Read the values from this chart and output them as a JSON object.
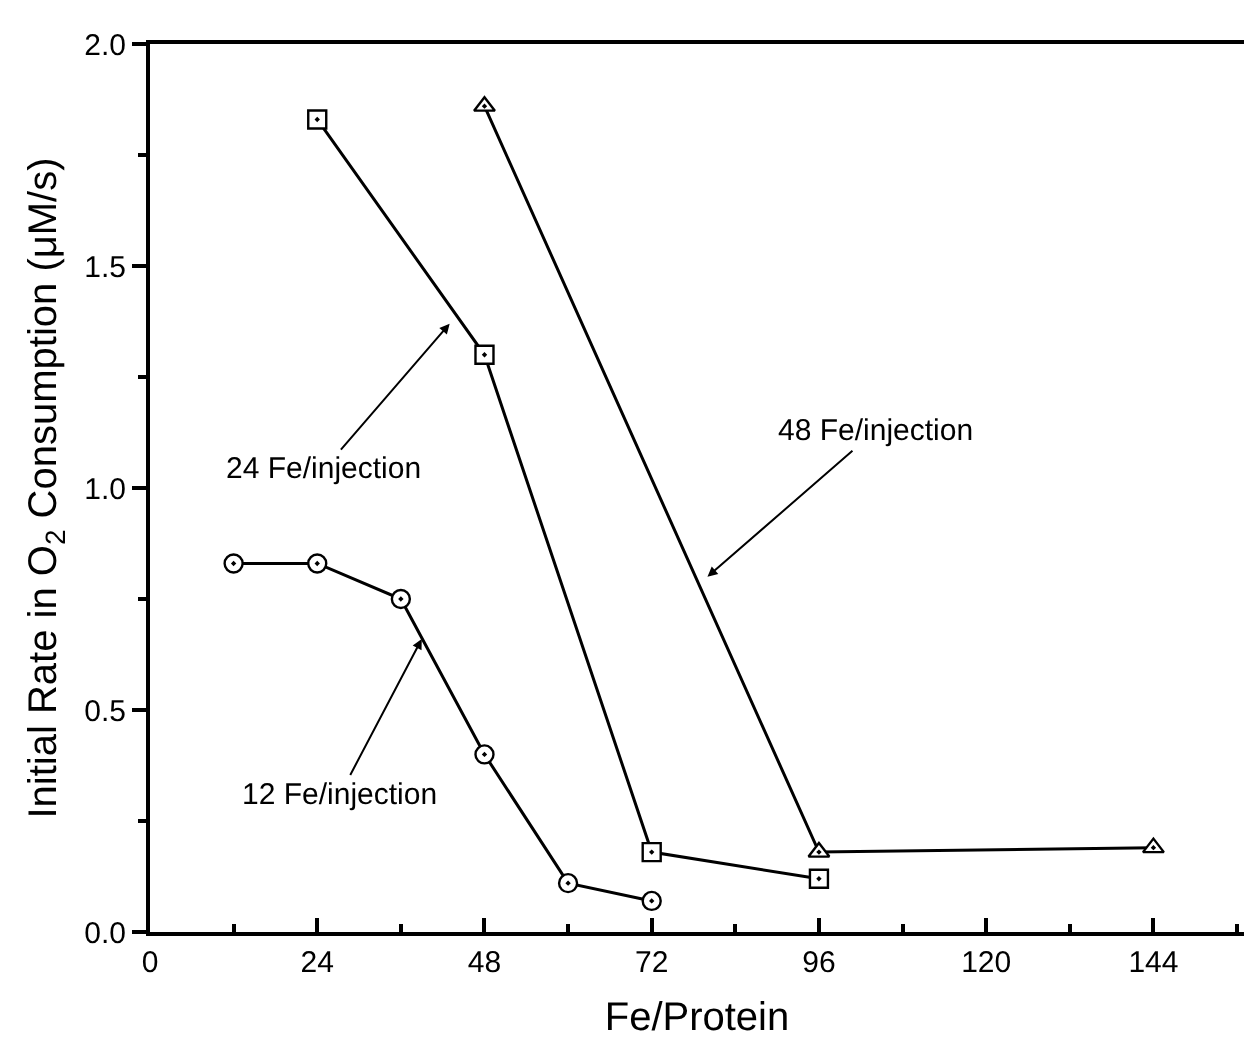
{
  "chart_data": {
    "type": "line",
    "xlabel": "Fe/Protein",
    "ylabel": "Initial Rate in O$_{2}$ Consumption (μM/s)",
    "xlim": [
      0,
      157
    ],
    "xticks": [
      0,
      24,
      48,
      72,
      96,
      120,
      144
    ],
    "ylim": [
      0,
      2.0
    ],
    "yticks": [
      {
        "value": 0,
        "label": "0.0"
      },
      {
        "value": 0.5,
        "label": "0.5"
      },
      {
        "value": 1,
        "label": "1.0"
      },
      {
        "value": 1.5,
        "label": "1.5"
      },
      {
        "value": 2,
        "label": "2.0"
      }
    ],
    "annotations": [
      {
        "text": "24 Fe/injection",
        "x": 43,
        "y": 1.37
      },
      {
        "text": "48 Fe/injection",
        "x": 80,
        "y": 0.8
      },
      {
        "text": "12 Fe/injection",
        "x": 39,
        "y": 0.66
      }
    ],
    "legend": false,
    "line_style": "solid",
    "series": [
      {
        "color": "#000000",
        "marker": "circle",
        "x": [
          12,
          24,
          36,
          48,
          60,
          72
        ],
        "values": [
          0.83,
          0.83,
          0.75,
          0.4,
          0.11,
          0.07
        ]
      },
      {
        "color": "#000000",
        "marker": "square",
        "x": [
          24,
          48,
          72,
          96
        ],
        "values": [
          1.83,
          1.3,
          0.18,
          0.12
        ]
      },
      {
        "color": "#000000",
        "marker": "triangle",
        "x": [
          48,
          96,
          144
        ],
        "values": [
          1.86,
          0.18,
          0.19
        ]
      }
    ]
  }
}
